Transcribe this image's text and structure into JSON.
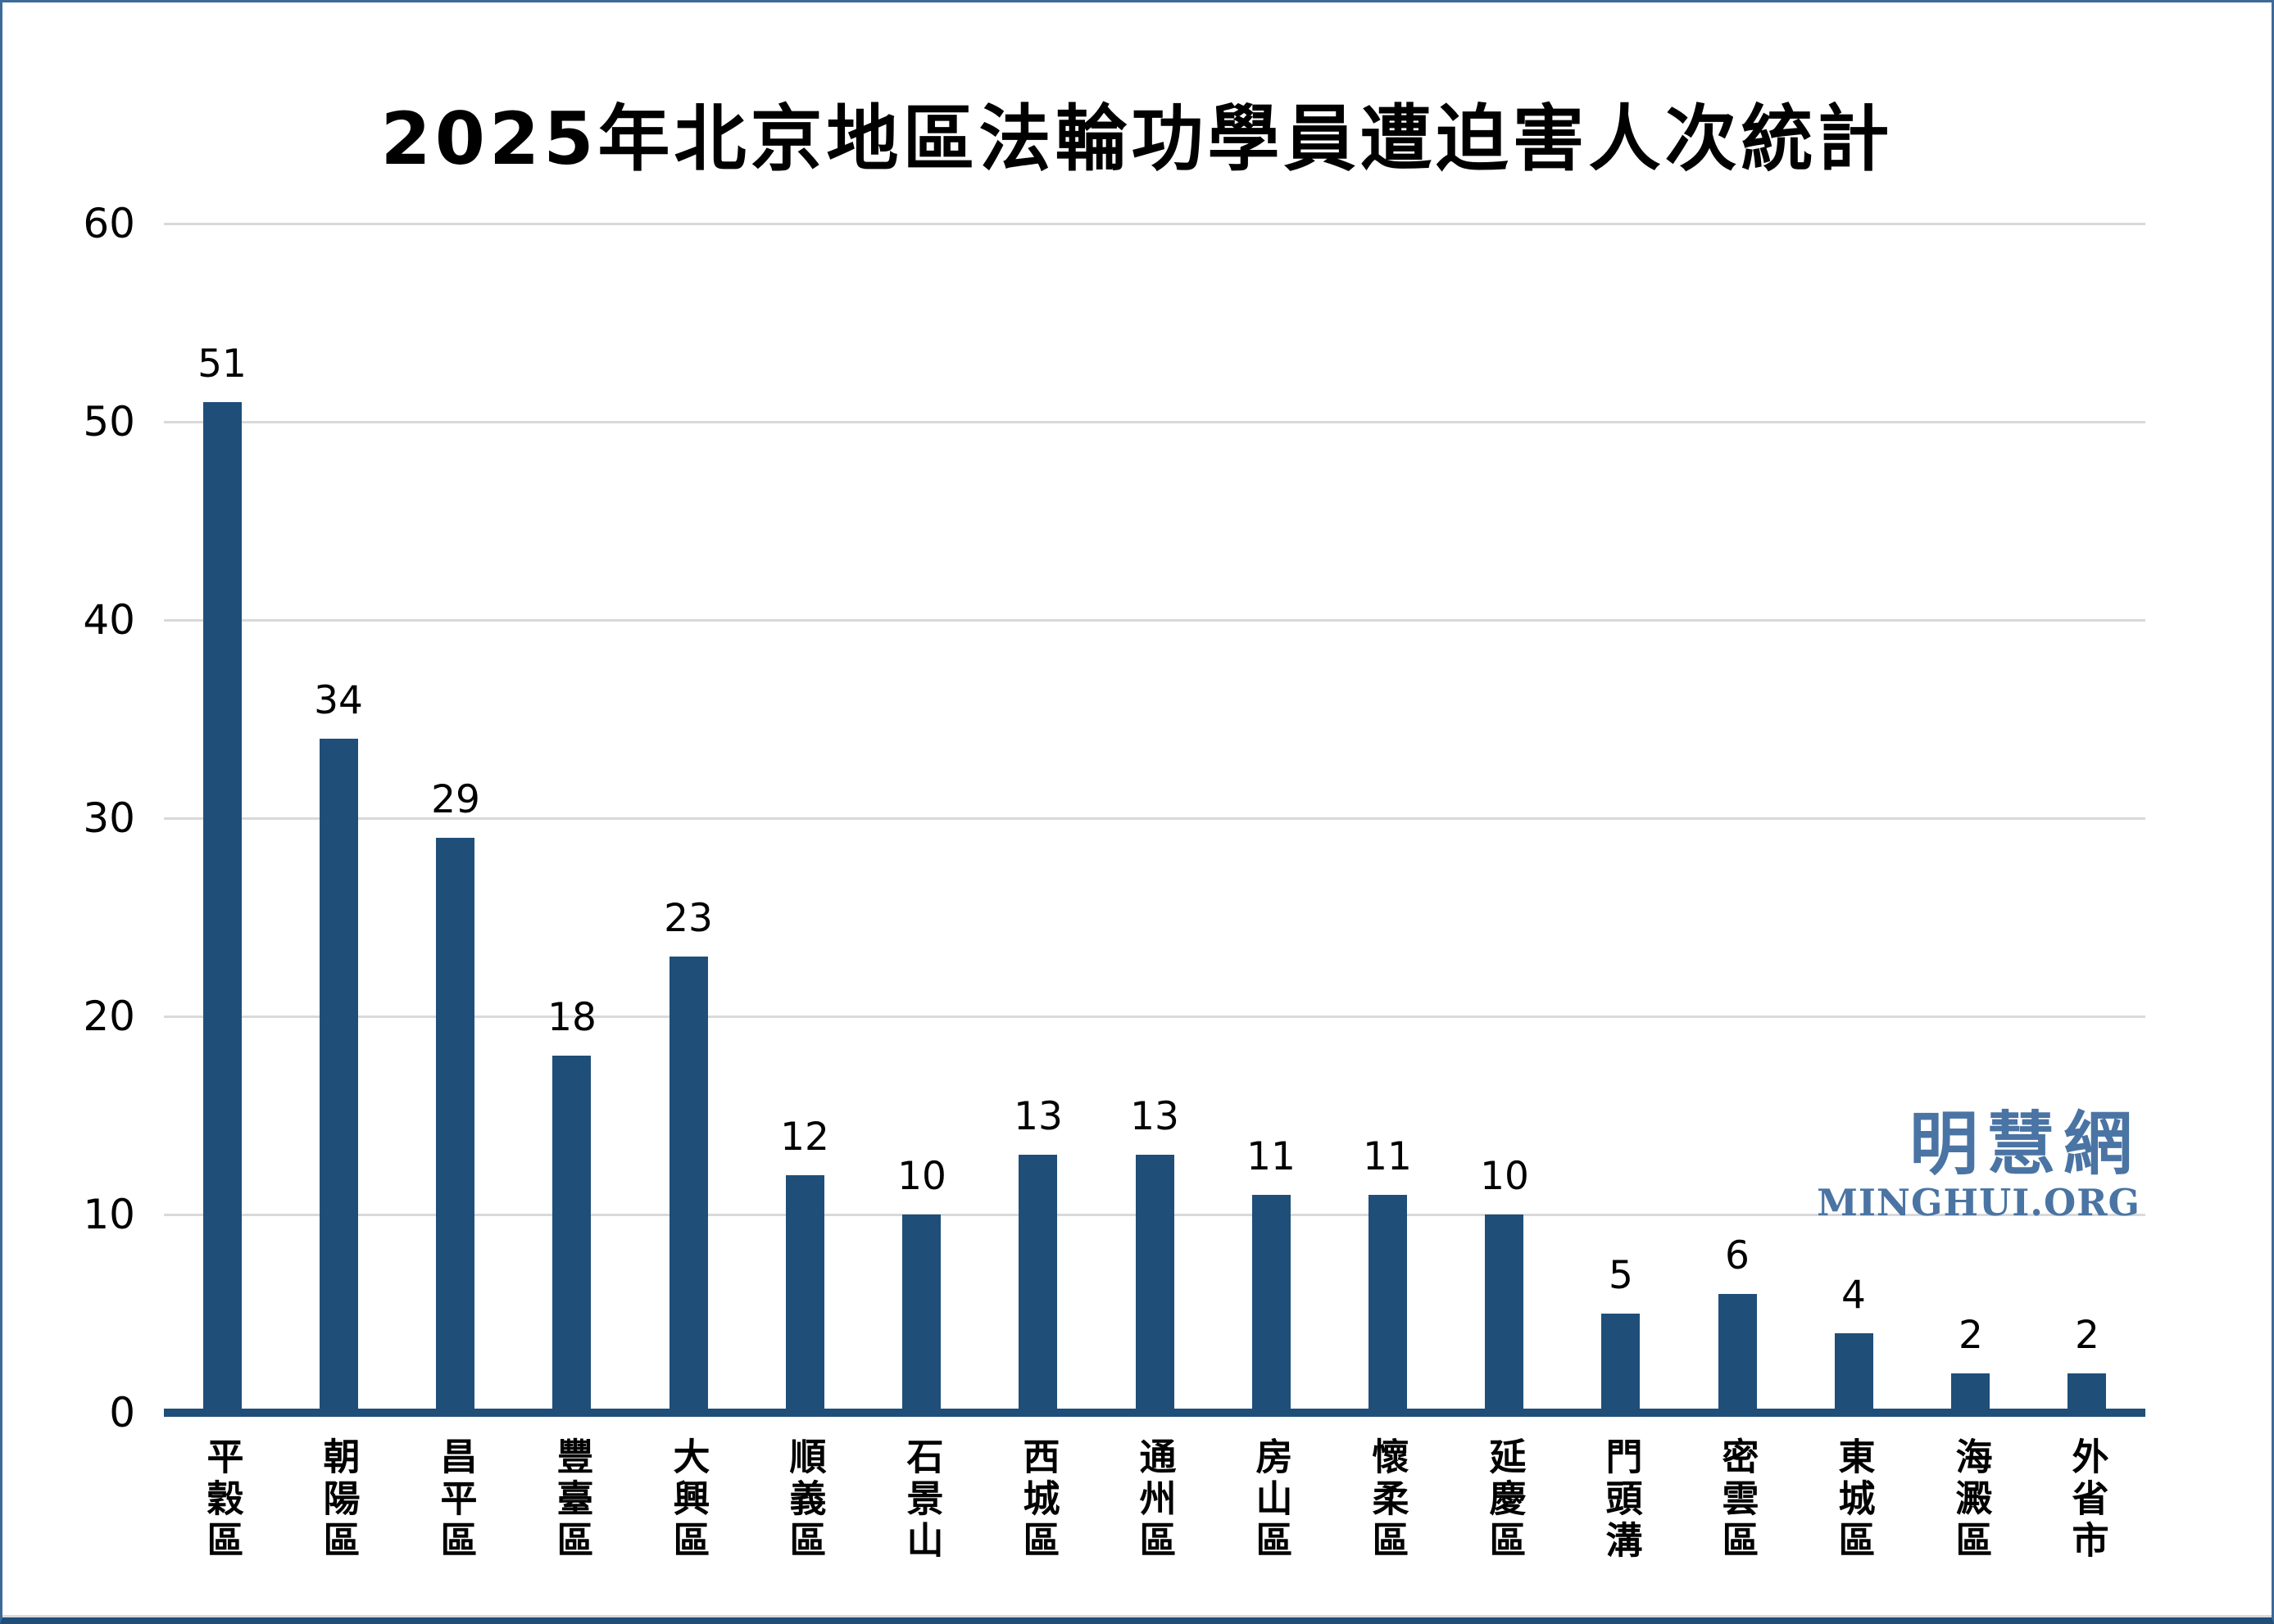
{
  "title": "2025年北京地區法輪功學員遭迫害人次統計",
  "watermark": {
    "cjk": "明慧網",
    "latin": "MINGHUI.ORG"
  },
  "colors": {
    "bar": "#1F4E79",
    "axis_line": "#1F4E79",
    "gridline": "#D9D9D9",
    "watermark": "#4A74A3",
    "frame_border": "#3D6A99",
    "title_text": "#000000"
  },
  "chart_data": {
    "type": "bar",
    "title": "2025年北京地區法輪功學員遭迫害人次統計",
    "categories": [
      "平穀區",
      "朝陽區",
      "昌平區",
      "豐臺區",
      "大興區",
      "順義區",
      "石景山",
      "西城區",
      "通州區",
      "房山區",
      "懷柔區",
      "延慶區",
      "門頭溝",
      "密雲區",
      "東城區",
      "海澱區",
      "外省市"
    ],
    "values": [
      51,
      34,
      29,
      18,
      23,
      12,
      10,
      13,
      13,
      11,
      11,
      10,
      5,
      6,
      4,
      2,
      2
    ],
    "xlabel": "",
    "ylabel": "",
    "ylim": [
      0,
      60
    ],
    "yticks": [
      0,
      10,
      20,
      30,
      40,
      50,
      60
    ],
    "grid": true,
    "legend": false,
    "data_labels": true,
    "bar_color": "#1F4E79"
  }
}
